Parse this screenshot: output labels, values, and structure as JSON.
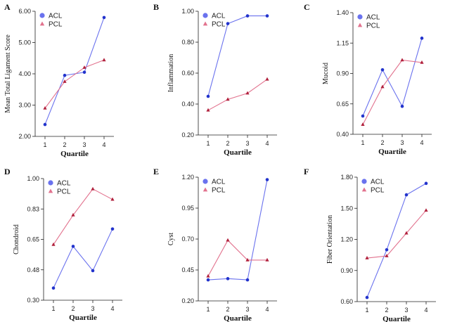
{
  "colors": {
    "acl": "#6a72ee",
    "pcl": "#e2728e",
    "acl_marker": "#2233cc",
    "pcl_marker": "#b0203c"
  },
  "chart_data": [
    {
      "panel": "A",
      "type": "line",
      "ylabel": "Mean Total Ligament Score",
      "xlabel": "Quartile",
      "x": [
        1,
        2,
        3,
        4
      ],
      "ylim": [
        2.0,
        6.0
      ],
      "yticks": [
        "2.00",
        "3.00",
        "4.00",
        "5.00",
        "6.00"
      ],
      "legend": "top-left",
      "series": [
        {
          "name": "ACL",
          "values": [
            2.38,
            3.95,
            4.05,
            5.8
          ]
        },
        {
          "name": "PCL",
          "values": [
            2.9,
            3.75,
            4.2,
            4.44
          ]
        }
      ]
    },
    {
      "panel": "B",
      "type": "line",
      "ylabel": "Inflammation",
      "xlabel": "Quartile",
      "x": [
        1,
        2,
        3,
        4
      ],
      "ylim": [
        0.2,
        1.0
      ],
      "yticks": [
        "0.20",
        "0.40",
        "0.60",
        "0.80",
        "1.00"
      ],
      "legend": "top-left",
      "series": [
        {
          "name": "ACL",
          "values": [
            0.45,
            0.92,
            0.97,
            0.97
          ]
        },
        {
          "name": "PCL",
          "values": [
            0.36,
            0.43,
            0.47,
            0.56
          ]
        }
      ]
    },
    {
      "panel": "C",
      "type": "line",
      "ylabel": "Mucoid",
      "xlabel": "Quartile",
      "x": [
        1,
        2,
        3,
        4
      ],
      "ylim": [
        0.4,
        1.4
      ],
      "yticks": [
        "0.40",
        "0.65",
        "0.90",
        "1.15",
        "1.40"
      ],
      "legend": "top-left",
      "series": [
        {
          "name": "ACL",
          "values": [
            0.55,
            0.93,
            0.63,
            1.19
          ]
        },
        {
          "name": "PCL",
          "values": [
            0.48,
            0.79,
            1.01,
            0.99
          ]
        }
      ]
    },
    {
      "panel": "D",
      "type": "line",
      "ylabel": "Chondroid",
      "xlabel": "Quartile",
      "x": [
        1,
        2,
        3,
        4
      ],
      "ylim": [
        0.3,
        1.0
      ],
      "yticks": [
        "0.30",
        "0.48",
        "0.65",
        "0.83",
        "1.00"
      ],
      "legend": "top-left",
      "series": [
        {
          "name": "ACL",
          "values": [
            0.37,
            0.61,
            0.47,
            0.71
          ]
        },
        {
          "name": "PCL",
          "values": [
            0.62,
            0.79,
            0.94,
            0.88
          ]
        }
      ]
    },
    {
      "panel": "E",
      "type": "line",
      "ylabel": "Cyst",
      "xlabel": "Quartile",
      "x": [
        1,
        2,
        3,
        4
      ],
      "ylim": [
        0.2,
        1.2
      ],
      "yticks": [
        "0.20",
        "0.45",
        "0.70",
        "0.95",
        "1.20"
      ],
      "legend": "top-left",
      "series": [
        {
          "name": "ACL",
          "values": [
            0.37,
            0.38,
            0.37,
            1.18
          ]
        },
        {
          "name": "PCL",
          "values": [
            0.4,
            0.69,
            0.53,
            0.53
          ]
        }
      ]
    },
    {
      "panel": "F",
      "type": "line",
      "ylabel": "Fiber Orientation",
      "xlabel": "Quartile",
      "x": [
        1,
        2,
        3,
        4
      ],
      "ylim": [
        0.6,
        1.8
      ],
      "yticks": [
        "0.60",
        "0.90",
        "1.20",
        "1.50",
        "1.80"
      ],
      "legend": "top-left",
      "series": [
        {
          "name": "ACL",
          "values": [
            0.64,
            1.1,
            1.63,
            1.74
          ]
        },
        {
          "name": "PCL",
          "values": [
            1.02,
            1.04,
            1.26,
            1.48
          ]
        }
      ]
    }
  ]
}
